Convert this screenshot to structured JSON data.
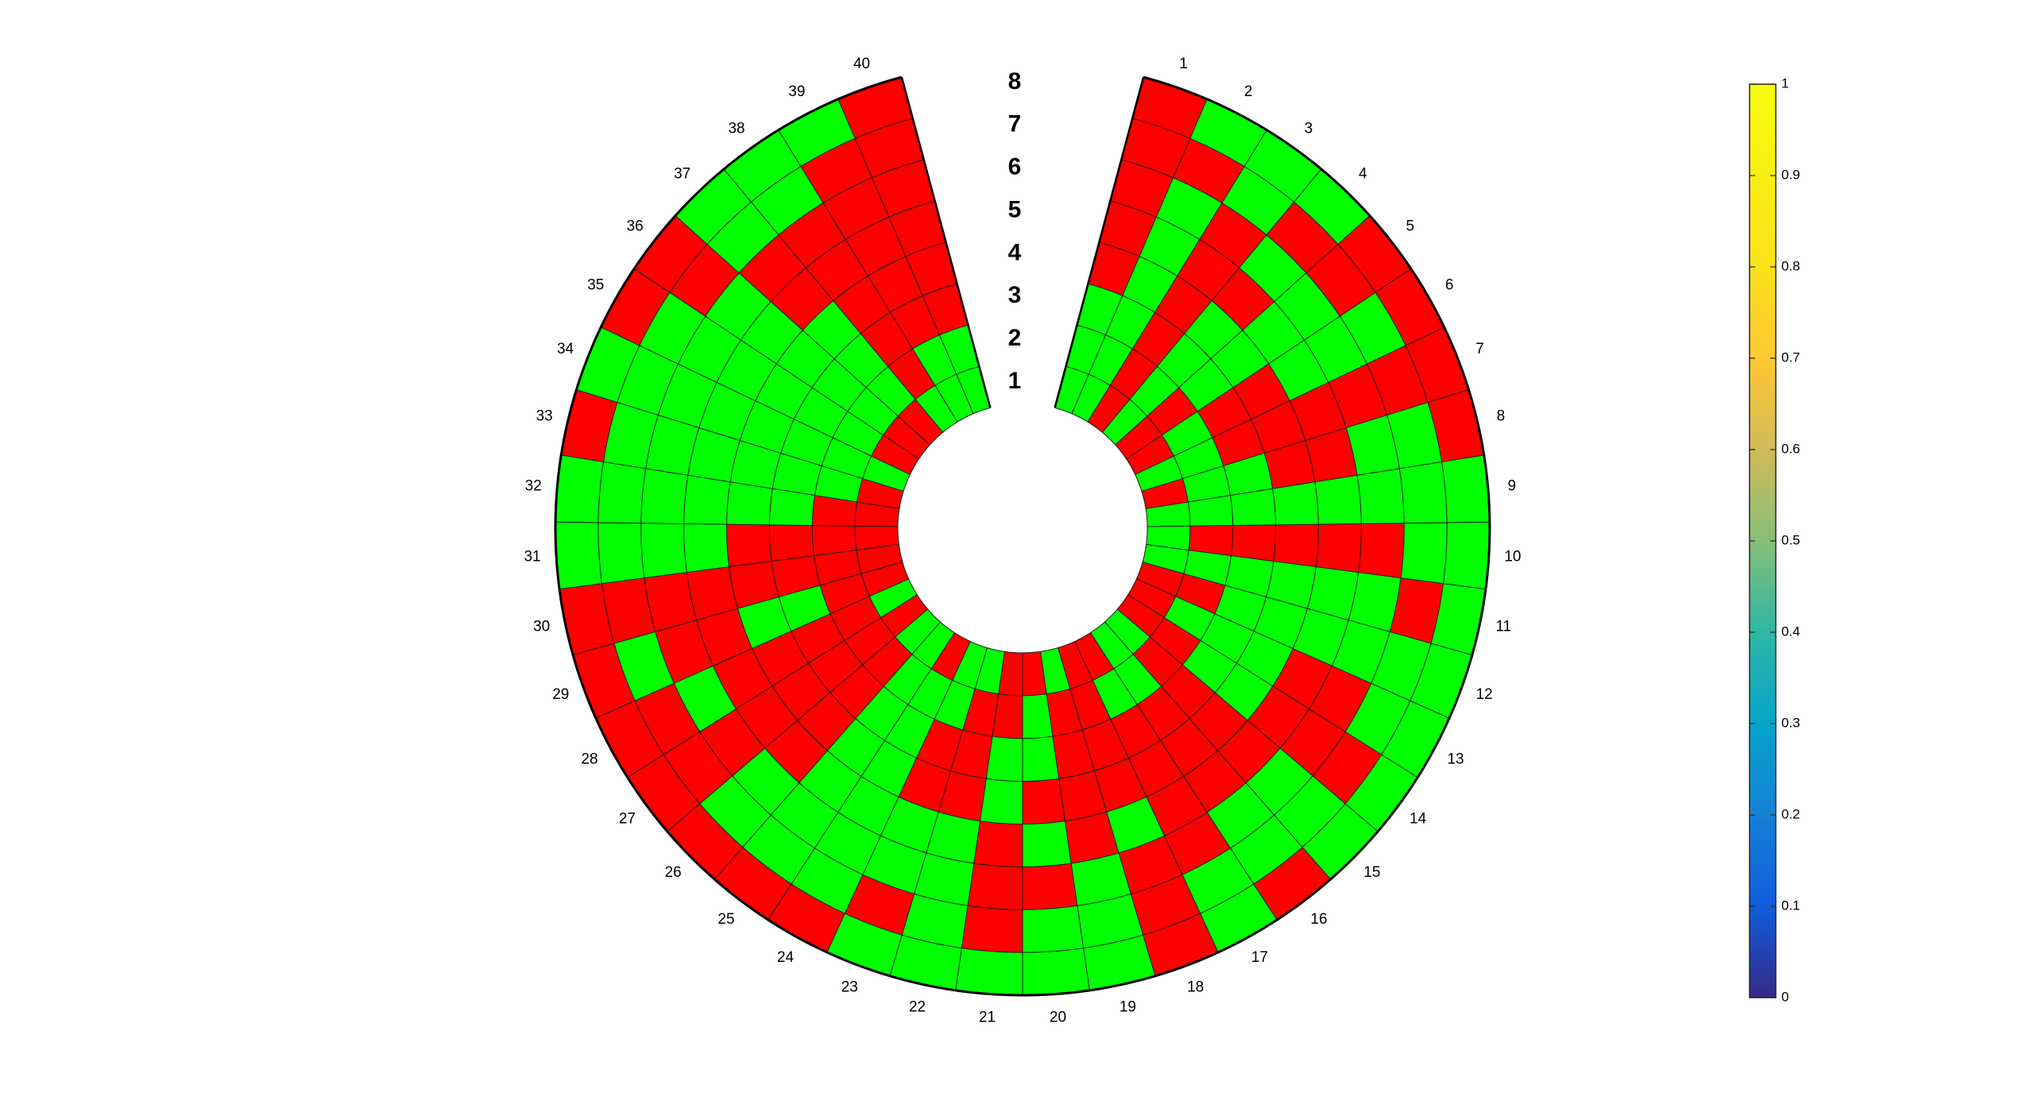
{
  "chart_data": {
    "type": "heatmap",
    "layout": "polar",
    "title": "",
    "sectors": [
      "1",
      "2",
      "3",
      "4",
      "5",
      "6",
      "7",
      "8",
      "9",
      "10",
      "11",
      "12",
      "13",
      "14",
      "15",
      "16",
      "17",
      "18",
      "19",
      "20",
      "21",
      "22",
      "23",
      "24",
      "25",
      "26",
      "27",
      "28",
      "29",
      "30",
      "31",
      "32",
      "33",
      "34",
      "35",
      "36",
      "37",
      "38",
      "39",
      "40"
    ],
    "rings": [
      "1",
      "2",
      "3",
      "4",
      "5",
      "6",
      "7",
      "8"
    ],
    "cell_colors": {
      "0": "#ff0000",
      "1": "#00ff00"
    },
    "values": [
      [
        1,
        1,
        1,
        0,
        0,
        0,
        0,
        0
      ],
      [
        1,
        1,
        1,
        1,
        1,
        1,
        0,
        1
      ],
      [
        0,
        0,
        0,
        0,
        0,
        0,
        1,
        1
      ],
      [
        1,
        1,
        1,
        1,
        0,
        1,
        0,
        1
      ],
      [
        0,
        0,
        1,
        1,
        1,
        1,
        0,
        0
      ],
      [
        0,
        1,
        0,
        0,
        1,
        1,
        1,
        0
      ],
      [
        1,
        1,
        0,
        0,
        0,
        0,
        0,
        0
      ],
      [
        0,
        1,
        1,
        0,
        0,
        1,
        1,
        0
      ],
      [
        1,
        1,
        1,
        1,
        1,
        1,
        1,
        1
      ],
      [
        1,
        0,
        0,
        0,
        0,
        0,
        1,
        1
      ],
      [
        1,
        1,
        1,
        1,
        1,
        1,
        0,
        1
      ],
      [
        0,
        0,
        1,
        1,
        1,
        1,
        1,
        1
      ],
      [
        0,
        1,
        1,
        1,
        0,
        0,
        1,
        1
      ],
      [
        0,
        0,
        1,
        1,
        0,
        0,
        0,
        1
      ],
      [
        1,
        0,
        0,
        0,
        0,
        1,
        1,
        1
      ],
      [
        1,
        1,
        0,
        0,
        0,
        1,
        1,
        0
      ],
      [
        0,
        1,
        0,
        0,
        0,
        0,
        1,
        1
      ],
      [
        0,
        0,
        0,
        0,
        1,
        0,
        0,
        0
      ],
      [
        1,
        0,
        0,
        0,
        0,
        1,
        1,
        1
      ],
      [
        0,
        1,
        1,
        0,
        1,
        0,
        1,
        1
      ],
      [
        0,
        0,
        1,
        1,
        0,
        0,
        0,
        1
      ],
      [
        1,
        0,
        0,
        0,
        1,
        1,
        1,
        1
      ],
      [
        1,
        1,
        0,
        0,
        1,
        1,
        0,
        1
      ],
      [
        0,
        1,
        1,
        1,
        1,
        1,
        1,
        0
      ],
      [
        1,
        1,
        1,
        1,
        1,
        1,
        1,
        0
      ],
      [
        1,
        0,
        0,
        0,
        0,
        1,
        1,
        0
      ],
      [
        0,
        0,
        0,
        0,
        0,
        0,
        0,
        0
      ],
      [
        1,
        0,
        0,
        0,
        0,
        1,
        0,
        0
      ],
      [
        0,
        0,
        1,
        1,
        0,
        0,
        1,
        0
      ],
      [
        0,
        0,
        0,
        0,
        0,
        0,
        0,
        0
      ],
      [
        0,
        0,
        0,
        0,
        1,
        1,
        1,
        1
      ],
      [
        0,
        0,
        1,
        1,
        1,
        1,
        1,
        1
      ],
      [
        0,
        1,
        1,
        1,
        1,
        1,
        1,
        0
      ],
      [
        1,
        1,
        1,
        1,
        1,
        1,
        1,
        1
      ],
      [
        0,
        1,
        1,
        1,
        1,
        1,
        1,
        0
      ],
      [
        0,
        1,
        1,
        1,
        1,
        1,
        0,
        0
      ],
      [
        0,
        1,
        1,
        1,
        0,
        0,
        1,
        1
      ],
      [
        1,
        0,
        0,
        0,
        0,
        0,
        1,
        1
      ],
      [
        1,
        1,
        0,
        0,
        0,
        0,
        0,
        1
      ],
      [
        1,
        1,
        0,
        0,
        0,
        0,
        0,
        0
      ]
    ],
    "colorbar": {
      "colormap": "parula",
      "range": [
        0,
        1
      ],
      "ticks": [
        "0",
        "0.1",
        "0.2",
        "0.3",
        "0.4",
        "0.5",
        "0.6",
        "0.7",
        "0.8",
        "0.9",
        "1"
      ]
    },
    "grid": true,
    "legend": "none",
    "colorbar_position": "right"
  }
}
